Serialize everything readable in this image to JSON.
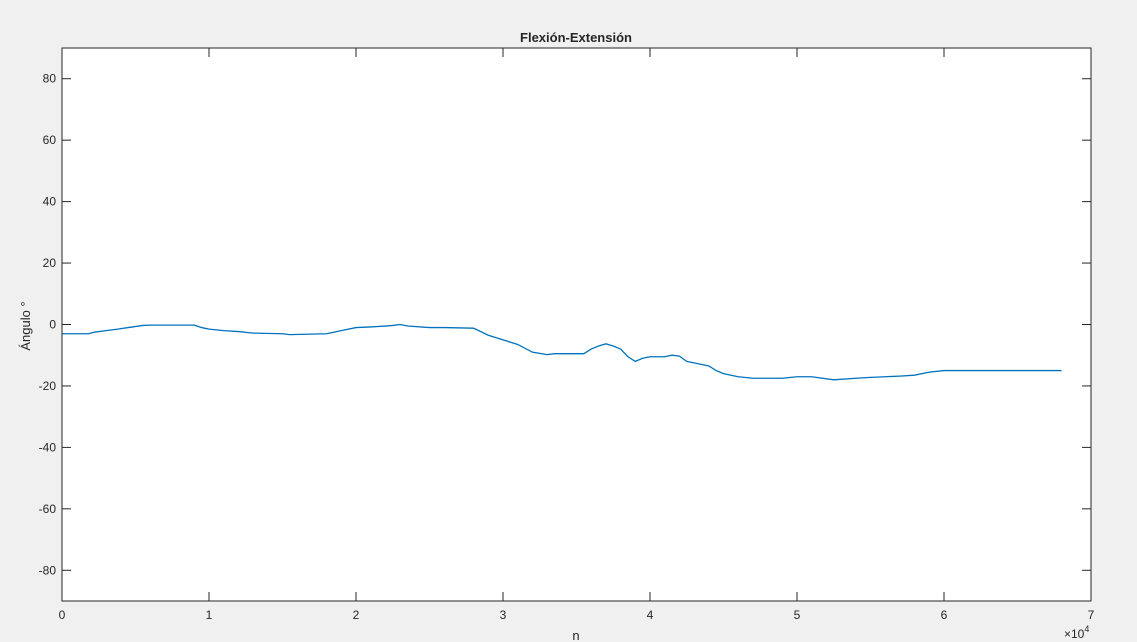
{
  "figure": {
    "background": "#f0f0f0",
    "axes_background": "#ffffff",
    "line_color": "#0072bd"
  },
  "chart_data": {
    "type": "line",
    "title": "Flexión-Extensión",
    "xlabel": "n",
    "ylabel": "Ángulo °",
    "x_exponent_label": "×10",
    "x_exponent_power": "4",
    "xlim": [
      0,
      7
    ],
    "ylim": [
      -90,
      90
    ],
    "x_ticks": [
      0,
      1,
      2,
      3,
      4,
      5,
      6,
      7
    ],
    "y_ticks": [
      -80,
      -60,
      -40,
      -20,
      0,
      20,
      40,
      60,
      80
    ],
    "grid": false,
    "series": [
      {
        "x": [
          0,
          0.18,
          0.22,
          0.3,
          0.38,
          0.45,
          0.55,
          0.6,
          0.9,
          0.95,
          1.0,
          1.1,
          1.2,
          1.3,
          1.5,
          1.55,
          1.8,
          1.9,
          2.0,
          2.1,
          2.2,
          2.25,
          2.3,
          2.35,
          2.5,
          2.6,
          2.8,
          2.9,
          3.0,
          3.1,
          3.2,
          3.3,
          3.35,
          3.55,
          3.6,
          3.65,
          3.7,
          3.75,
          3.8,
          3.85,
          3.9,
          3.95,
          4.0,
          4.1,
          4.15,
          4.2,
          4.25,
          4.3,
          4.4,
          4.45,
          4.5,
          4.6,
          4.7,
          4.8,
          4.9,
          5.0,
          5.1,
          5.25,
          5.4,
          5.5,
          5.6,
          5.7,
          5.8,
          5.9,
          6.0,
          6.1,
          6.4,
          6.8
        ],
        "y": [
          -3,
          -3,
          -2.5,
          -2,
          -1.5,
          -1,
          -0.3,
          -0.2,
          -0.2,
          -1,
          -1.5,
          -2,
          -2.3,
          -2.8,
          -3,
          -3.3,
          -3,
          -2,
          -1,
          -0.8,
          -0.5,
          -0.3,
          0,
          -0.5,
          -1,
          -1,
          -1.2,
          -3.5,
          -5,
          -6.5,
          -9,
          -9.8,
          -9.5,
          -9.5,
          -8,
          -7,
          -6.3,
          -7,
          -8,
          -10.5,
          -12,
          -11,
          -10.5,
          -10.5,
          -10,
          -10.3,
          -12,
          -12.5,
          -13.5,
          -15,
          -16,
          -17,
          -17.5,
          -17.5,
          -17.5,
          -17,
          -17,
          -18,
          -17.5,
          -17.2,
          -17,
          -16.8,
          -16.5,
          -15.5,
          -15,
          -15,
          -15,
          -15
        ]
      }
    ]
  }
}
